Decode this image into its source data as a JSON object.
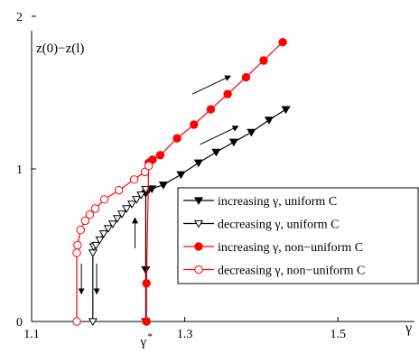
{
  "chart_data": {
    "type": "line",
    "title": "",
    "ylabel": "z(0)−z(l)",
    "xlabel": "γ",
    "xlim": [
      1.1,
      1.6
    ],
    "ylim": [
      0,
      2
    ],
    "x_ticks": [
      1.1,
      1.3,
      1.5
    ],
    "x_tick_labels": [
      "1.1",
      "1.3",
      "1.5"
    ],
    "y_ticks": [
      0,
      1,
      2
    ],
    "y_tick_labels": [
      "0",
      "1",
      "2"
    ],
    "grid": false,
    "legend_position": "bottom-right",
    "annotations": [
      {
        "type": "tick-label",
        "text": "γ",
        "superscript": "*",
        "x": 1.249
      },
      {
        "type": "arrow",
        "direction": "down",
        "from": [
          1.165,
          0.38
        ],
        "to": [
          1.165,
          0.18
        ]
      },
      {
        "type": "arrow",
        "direction": "down",
        "from": [
          1.185,
          0.38
        ],
        "to": [
          1.185,
          0.18
        ]
      },
      {
        "type": "arrow",
        "direction": "up",
        "from": [
          1.235,
          0.48
        ],
        "to": [
          1.235,
          0.68
        ]
      },
      {
        "type": "arrow",
        "direction": "up-right",
        "from": [
          1.31,
          1.49
        ],
        "to": [
          1.36,
          1.61
        ]
      },
      {
        "type": "arrow",
        "direction": "up-right",
        "from": [
          1.32,
          1.16
        ],
        "to": [
          1.37,
          1.28
        ]
      }
    ],
    "series": [
      {
        "name": "increasing γ, uniform C",
        "color": "#000000",
        "marker": "triangle-down-filled",
        "x": [
          1.249,
          1.249,
          1.249,
          1.252,
          1.257,
          1.272,
          1.295,
          1.318,
          1.341,
          1.364,
          1.387,
          1.41,
          1.432
        ],
        "y": [
          0.0,
          0.34,
          0.84,
          0.855,
          0.87,
          0.895,
          0.963,
          1.04,
          1.11,
          1.176,
          1.24,
          1.32,
          1.39
        ]
      },
      {
        "name": "decreasing γ, uniform C",
        "color": "#000000",
        "marker": "triangle-down-open",
        "x": [
          1.18,
          1.18,
          1.181,
          1.184,
          1.189,
          1.194,
          1.2,
          1.206,
          1.212,
          1.218,
          1.224,
          1.231,
          1.237,
          1.243,
          1.249
        ],
        "y": [
          0.0,
          0.45,
          0.49,
          0.5,
          0.535,
          0.575,
          0.61,
          0.64,
          0.675,
          0.705,
          0.74,
          0.77,
          0.8,
          0.83,
          0.865
        ]
      },
      {
        "name": "increasing γ, non−uniform C",
        "color": "#ff0000",
        "marker": "circle-filled",
        "x": [
          1.25,
          1.25,
          1.253,
          1.258,
          1.268,
          1.29,
          1.312,
          1.334,
          1.356,
          1.38,
          1.403,
          1.428
        ],
        "y": [
          0.0,
          0.25,
          1.04,
          1.06,
          1.09,
          1.2,
          1.29,
          1.39,
          1.49,
          1.6,
          1.71,
          1.83
        ]
      },
      {
        "name": "decreasing γ, non−uniform C",
        "color": "#ff0000",
        "marker": "circle-open",
        "x": [
          1.159,
          1.159,
          1.16,
          1.164,
          1.17,
          1.176,
          1.183,
          1.195,
          1.214,
          1.234,
          1.248,
          1.253
        ],
        "y": [
          0.0,
          0.45,
          0.5,
          0.6,
          0.66,
          0.7,
          0.74,
          0.8,
          0.86,
          0.93,
          0.98,
          1.02
        ]
      }
    ]
  }
}
